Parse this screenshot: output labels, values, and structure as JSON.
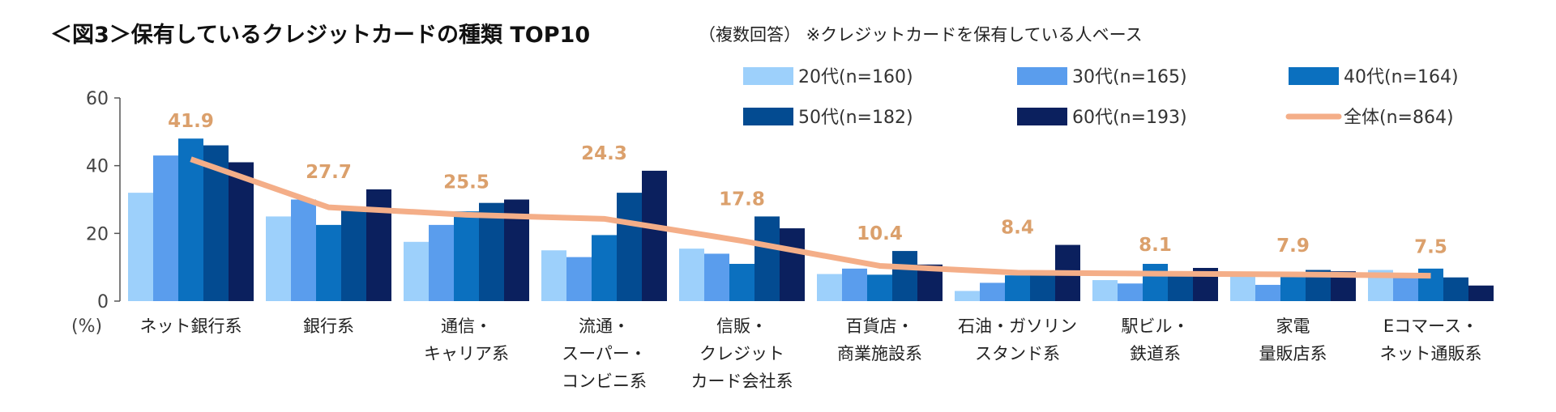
{
  "chart_data": {
    "type": "bar",
    "title": "＜図3＞保有しているクレジットカードの種類 TOP10",
    "subtitle": "（複数回答） ※クレジットカードを保有している人ベース",
    "ylabel": "(%)",
    "ylim": [
      0,
      60
    ],
    "yticks": [
      "0",
      "20",
      "40",
      "60"
    ],
    "grid": false,
    "legend_position": "top-right",
    "categories": [
      [
        "ネット銀行系"
      ],
      [
        "銀行系"
      ],
      [
        "通信・",
        "キャリア系"
      ],
      [
        "流通・",
        "スーパー・",
        "コンビニ系"
      ],
      [
        "信販・",
        "クレジット",
        "カード会社系"
      ],
      [
        "百貨店・",
        "商業施設系"
      ],
      [
        "石油・ガソリン",
        "スタンド系"
      ],
      [
        "駅ビル・",
        "鉄道系"
      ],
      [
        "家電",
        "量販店系"
      ],
      [
        "Eコマース・",
        "ネット通販系"
      ]
    ],
    "series": [
      {
        "name": "20代(n=160)",
        "type": "bar",
        "color": "#9dd0fb",
        "values": [
          32,
          25,
          17.5,
          15,
          15.5,
          8,
          3,
          6.2,
          8,
          9.2
        ]
      },
      {
        "name": "30代(n=165)",
        "type": "bar",
        "color": "#5a9ded",
        "values": [
          43,
          30,
          22.5,
          13,
          14,
          9.6,
          5.4,
          5.2,
          4.8,
          8
        ]
      },
      {
        "name": "40代(n=164)",
        "type": "bar",
        "color": "#0b70bf",
        "values": [
          48,
          22.5,
          26.5,
          19.5,
          11,
          7.8,
          7.6,
          11,
          7.6,
          9.6
        ]
      },
      {
        "name": "50代(n=182)",
        "type": "bar",
        "color": "#034b91",
        "values": [
          46,
          27,
          29,
          32,
          25,
          14.8,
          7.6,
          8.5,
          9.2,
          7
        ]
      },
      {
        "name": "60代(n=193)",
        "type": "bar",
        "color": "#0b205e",
        "values": [
          41,
          33,
          30,
          38.5,
          21.5,
          10.8,
          16.6,
          9.8,
          8.8,
          4.6
        ]
      },
      {
        "name": "全体(n=864)",
        "type": "line",
        "color": "#f4ae88",
        "values": [
          41.9,
          27.7,
          25.5,
          24.3,
          17.8,
          10.4,
          8.4,
          8.1,
          7.9,
          7.5
        ],
        "labels": [
          "41.9",
          "27.7",
          "25.5",
          "24.3",
          "17.8",
          "10.4",
          "8.4",
          "8.1",
          "7.9",
          "7.5"
        ]
      }
    ]
  }
}
